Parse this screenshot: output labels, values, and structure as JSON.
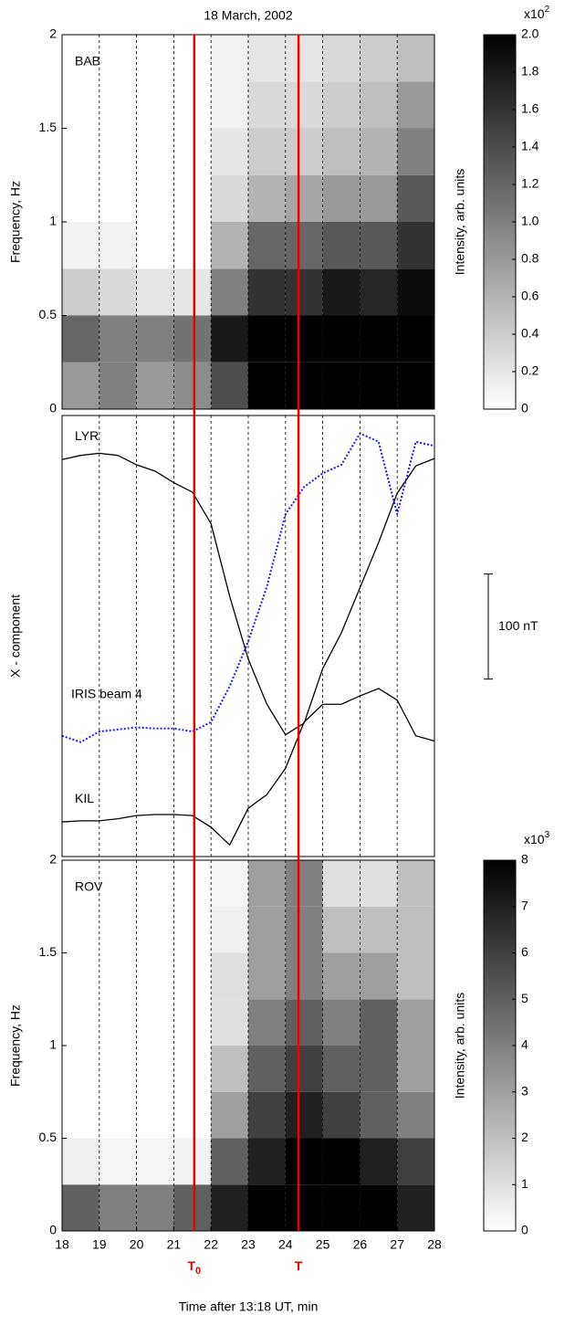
{
  "chart_data": [
    {
      "type": "heatmap",
      "title": "18 March, 2002",
      "label": "BAB",
      "ylabel": "Frequency, Hz",
      "xlim": [
        18,
        28
      ],
      "xticks": [
        18,
        19,
        20,
        21,
        22,
        23,
        24,
        25,
        26,
        27,
        28
      ],
      "grid": true,
      "xbins": [
        18,
        19,
        20,
        21,
        22,
        23,
        24,
        25,
        26,
        27,
        28
      ],
      "ybins": [
        0,
        0.25,
        0.5,
        0.75,
        1,
        1.25,
        1.5,
        1.75,
        2
      ],
      "ylim": [
        0,
        2
      ],
      "yticks": [
        0,
        0.5,
        1,
        1.5,
        2
      ],
      "z": [
        [
          0.8,
          1.0,
          0.8,
          0.9,
          1.4,
          2.0,
          2.0,
          2.0,
          2.0,
          2.0
        ],
        [
          1.2,
          1.0,
          1.0,
          1.1,
          1.8,
          2.0,
          2.0,
          2.0,
          2.0,
          2.0
        ],
        [
          0.4,
          0.3,
          0.2,
          0.2,
          1.0,
          1.6,
          1.6,
          1.8,
          1.7,
          1.9
        ],
        [
          0.1,
          0.1,
          0,
          0,
          0.6,
          1.2,
          1.2,
          1.3,
          1.3,
          1.6
        ],
        [
          0,
          0,
          0,
          0,
          0.3,
          0.6,
          0.7,
          0.8,
          0.8,
          1.3
        ],
        [
          0,
          0,
          0,
          0,
          0.2,
          0.4,
          0.4,
          0.5,
          0.6,
          1.0
        ],
        [
          0,
          0,
          0,
          0,
          0.1,
          0.3,
          0.3,
          0.4,
          0.5,
          0.8
        ],
        [
          0,
          0,
          0,
          0,
          0.1,
          0.2,
          0.2,
          0.3,
          0.4,
          0.5
        ]
      ],
      "colorbar": {
        "label": "Intensity, arb. units",
        "lim": [
          0,
          2
        ],
        "multiplier": "x10",
        "exponent": 2,
        "ticks": [
          0,
          {
            "value": 0.2,
            "label": "0.2"
          },
          {
            "value": 0.4,
            "label": "0.4"
          },
          {
            "value": 0.6,
            "label": "0.6"
          },
          {
            "value": 0.8,
            "label": "0.8"
          },
          {
            "value": 1,
            "label": "1.0"
          },
          {
            "value": 1.2,
            "label": "1.2"
          },
          {
            "value": 1.4,
            "label": "1.4"
          },
          {
            "value": 1.6,
            "label": "1.6"
          },
          {
            "value": 1.8,
            "label": "1.8"
          },
          {
            "value": 2,
            "label": "2.0"
          }
        ]
      }
    },
    {
      "type": "line",
      "ylabel": "X - component",
      "xlim": [
        18,
        28
      ],
      "xticks": [
        18,
        19,
        20,
        21,
        22,
        23,
        24,
        25,
        26,
        27,
        28
      ],
      "grid": true,
      "ylim": [
        0,
        420
      ],
      "x": [
        18,
        18.5,
        19,
        19.5,
        20,
        20.5,
        21,
        21.5,
        22,
        22.5,
        23,
        23.5,
        24,
        24.5,
        25,
        25.5,
        26,
        26.5,
        27,
        27.5,
        28
      ],
      "series": [
        {
          "name": "LYR",
          "color": "#000000",
          "values": [
            378,
            382,
            384,
            382,
            373,
            367,
            356,
            347,
            317,
            248,
            188,
            145,
            116,
            127,
            179,
            213,
            256,
            299,
            346,
            372,
            379
          ]
        },
        {
          "name": "KIL",
          "color": "#000000",
          "values": [
            33,
            34,
            34,
            36,
            39,
            40,
            40,
            39,
            28,
            11,
            46,
            59,
            84,
            128,
            145,
            145,
            153,
            160,
            149,
            115,
            110
          ]
        },
        {
          "name": "IRIS beam 4",
          "color": "#1a1aff",
          "dotted": true,
          "values": [
            115,
            109,
            119,
            121,
            123,
            122,
            122,
            119,
            128,
            162,
            205,
            257,
            326,
            352,
            365,
            373,
            403,
            395,
            326,
            395,
            391
          ]
        }
      ],
      "scale_bar": {
        "from": 169,
        "value": 100,
        "label": "100 nT"
      }
    },
    {
      "type": "heatmap",
      "label": "ROV",
      "ylabel": "Frequency, Hz",
      "xlabel": "Time after 13:18 UT, min",
      "xlim": [
        18,
        28
      ],
      "xticks": [
        18,
        19,
        20,
        21,
        22,
        23,
        24,
        25,
        26,
        27,
        28
      ],
      "grid": true,
      "xbins": [
        18,
        19,
        20,
        21,
        22,
        23,
        24,
        25,
        26,
        27,
        28
      ],
      "ybins": [
        0,
        0.25,
        0.5,
        0.75,
        1,
        1.25,
        1.5,
        1.75,
        2
      ],
      "ylim": [
        0,
        2
      ],
      "yticks": [
        0,
        0.5,
        1,
        1.5,
        2
      ],
      "z": [
        [
          5,
          4,
          4,
          5,
          7,
          8,
          8,
          8,
          8,
          7
        ],
        [
          0.5,
          0.3,
          0.3,
          0.4,
          5,
          7,
          8,
          8,
          7,
          6
        ],
        [
          0,
          0,
          0,
          0,
          3,
          6,
          7,
          6,
          5,
          4
        ],
        [
          0,
          0,
          0,
          0,
          2,
          5,
          6,
          5,
          5,
          3
        ],
        [
          0,
          0,
          0,
          0,
          1,
          4,
          5,
          4,
          5,
          3
        ],
        [
          0,
          0,
          0,
          0,
          1,
          3,
          4,
          3,
          3,
          2
        ],
        [
          0,
          0,
          0,
          0,
          0.5,
          3,
          4,
          2,
          2,
          2
        ],
        [
          0,
          0,
          0,
          0,
          0.3,
          3,
          4,
          1,
          1,
          2
        ]
      ],
      "colorbar": {
        "label": "Intensity, arb. units",
        "lim": [
          0,
          8
        ],
        "multiplier": "x10",
        "exponent": 3,
        "ticks": [
          0,
          1,
          2,
          3,
          4,
          5,
          6,
          7,
          8
        ]
      },
      "markers": [
        {
          "x": 21.55,
          "label": "T",
          "sub": "0"
        },
        {
          "x": 24.35,
          "label": "T"
        }
      ]
    }
  ]
}
